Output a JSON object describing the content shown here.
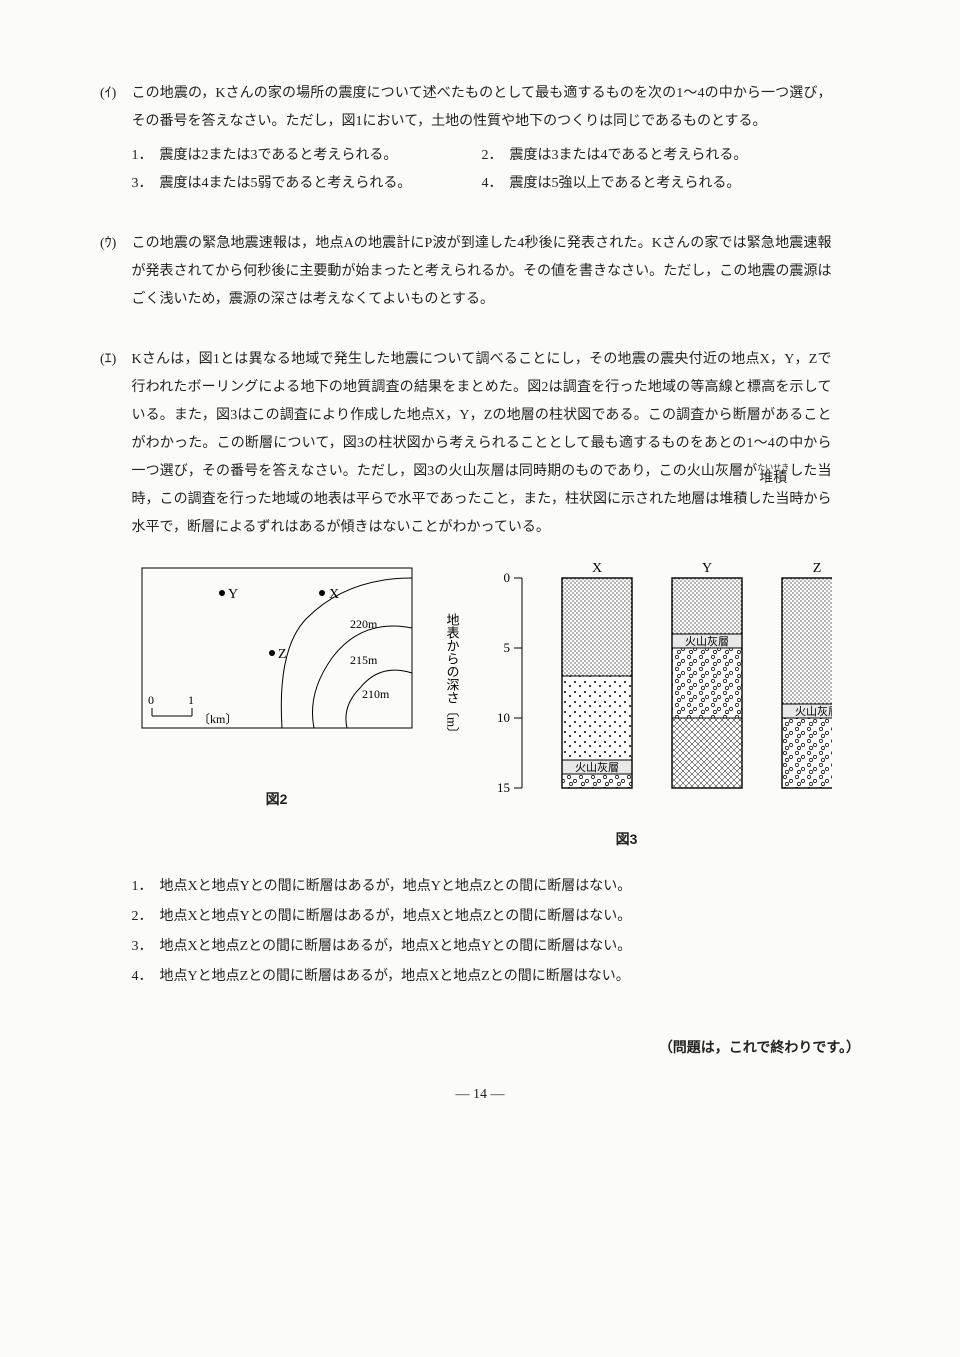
{
  "q_i": {
    "label": "(ｲ)",
    "text": "この地震の，Kさんの家の場所の震度について述べたものとして最も適するものを次の1～4の中から一つ選び，その番号を答えなさい。ただし，図1において，土地の性質や地下のつくりは同じであるものとする。",
    "choices": [
      "1．　震度は2または3であると考えられる。",
      "2．　震度は3または4であると考えられる。",
      "3．　震度は4または5弱であると考えられる。",
      "4．　震度は5強以上であると考えられる。"
    ]
  },
  "q_u": {
    "label": "(ｳ)",
    "text": "この地震の緊急地震速報は，地点Aの地震計にP波が到達した4秒後に発表された。Kさんの家では緊急地震速報が発表されてから何秒後に主要動が始まったと考えられるか。その値を書きなさい。ただし，この地震の震源はごく浅いため，震源の深さは考えなくてよいものとする。"
  },
  "q_e": {
    "label": "(ｴ)",
    "text_a": "Kさんは，図1とは異なる地域で発生した地震について調べることにし，その地震の震央付近の地点X，Y，Zで行われたボーリングによる地下の地質調査の結果をまとめた。図2は調査を行った地域の等高線と標高を示している。また，図3はこの調査により作成した地点X，Y，Zの地層の柱状図である。この調査から断層があることがわかった。この断層について，図3の柱状図から考えられることとして最も適するものをあとの1～4の中から一つ選び，その番号を答えなさい。ただし，図3の火山灰層は同時期のものであり，この火山灰層が",
    "ruby_rt": "たいせき",
    "ruby_rb": "堆積",
    "text_b": "した当時，この調査を行った地域の地表は平らで水平であったこと，また，柱状図に示された地層は堆積した当時から水平で，断層によるずれはあるが傾きはないことがわかっている。",
    "choices": [
      "1．　地点Xと地点Yとの間に断層はあるが，地点Yと地点Zとの間に断層はない。",
      "2．　地点Xと地点Yとの間に断層はあるが，地点Xと地点Zとの間に断層はない。",
      "3．　地点Xと地点Zとの間に断層はあるが，地点Xと地点Yとの間に断層はない。",
      "4．　地点Yと地点Zとの間に断層はあるが，地点Xと地点Zとの間に断層はない。"
    ]
  },
  "fig2": {
    "caption": "図2",
    "points": {
      "X": "X",
      "Y": "Y",
      "Z": "Z"
    },
    "contours": [
      "220m",
      "215m",
      "210m"
    ],
    "scale": {
      "zero": "0",
      "one": "1",
      "unit": "〔km〕"
    }
  },
  "fig3": {
    "caption": "図3",
    "axis_label": "地表からの深さ〔m〕",
    "columns": [
      "X",
      "Y",
      "Z"
    ],
    "ticks": [
      "0",
      "5",
      "10",
      "15"
    ],
    "ash_label": "火山灰層",
    "depth_range": [
      0,
      15
    ],
    "stratigraphy": {
      "X": [
        {
          "from": 0,
          "to": 7,
          "pattern": "fine-dots"
        },
        {
          "from": 7,
          "to": 13,
          "pattern": "sparse-dots"
        },
        {
          "from": 13,
          "to": 14,
          "pattern": "ash"
        },
        {
          "from": 14,
          "to": 15,
          "pattern": "gravel"
        }
      ],
      "Y": [
        {
          "from": 0,
          "to": 4,
          "pattern": "fine-dots"
        },
        {
          "from": 4,
          "to": 5,
          "pattern": "ash"
        },
        {
          "from": 5,
          "to": 10,
          "pattern": "gravel"
        },
        {
          "from": 10,
          "to": 15,
          "pattern": "cross-hatch"
        }
      ],
      "Z": [
        {
          "from": 0,
          "to": 9,
          "pattern": "fine-dots"
        },
        {
          "from": 9,
          "to": 10,
          "pattern": "ash"
        },
        {
          "from": 10,
          "to": 15,
          "pattern": "gravel"
        }
      ]
    },
    "colors": {
      "stroke": "#000000",
      "ash_fill": "#e8e8e8"
    }
  },
  "end_note": "（問題は，これで終わりです。）",
  "page_num": "― 14 ―"
}
